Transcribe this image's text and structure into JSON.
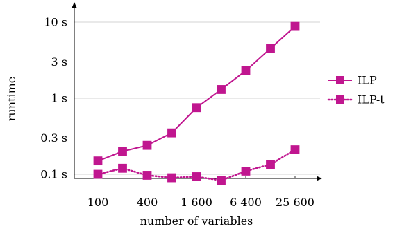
{
  "chart_data": {
    "type": "line",
    "title": "",
    "xlabel": "number of variables",
    "ylabel": "runtime",
    "x_scale": "log",
    "y_scale": "log",
    "x": [
      100,
      200,
      400,
      800,
      1600,
      3200,
      6400,
      12800,
      25600
    ],
    "x_ticks": [
      {
        "value": 100,
        "label": "100"
      },
      {
        "value": 400,
        "label": "400"
      },
      {
        "value": 1600,
        "label": "1 600"
      },
      {
        "value": 6400,
        "label": "6 400"
      },
      {
        "value": 25600,
        "label": "25 600"
      }
    ],
    "y_ticks": [
      {
        "value": 0.1,
        "label": "0.1 s"
      },
      {
        "value": 0.3,
        "label": "0.3 s"
      },
      {
        "value": 1,
        "label": "1 s"
      },
      {
        "value": 3,
        "label": "3 s"
      },
      {
        "value": 10,
        "label": "10 s"
      }
    ],
    "xlim": [
      70,
      36000
    ],
    "ylim": [
      0.085,
      16
    ],
    "grid": "horizontal",
    "legend_position": "right",
    "series": [
      {
        "name": "ILP",
        "style": "solid",
        "color": "#c0168f",
        "values": [
          0.15,
          0.2,
          0.24,
          0.35,
          0.75,
          1.3,
          2.3,
          4.5,
          8.8
        ]
      },
      {
        "name": "ILP-t",
        "style": "dotted",
        "color": "#c0168f",
        "values": [
          0.1,
          0.12,
          0.097,
          0.09,
          0.093,
          0.083,
          0.11,
          0.135,
          0.21
        ]
      }
    ]
  }
}
